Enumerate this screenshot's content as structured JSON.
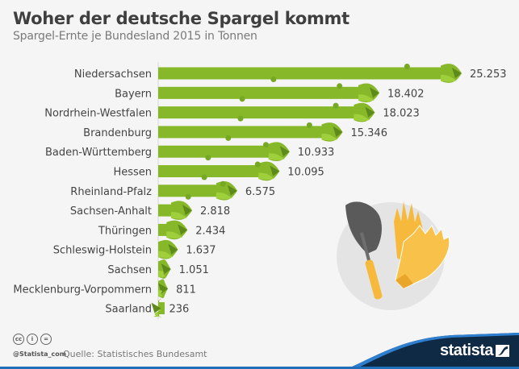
{
  "header": {
    "title": "Woher der deutsche Spargel kommt",
    "subtitle": "Spargel-Ernte je Bundesland 2015 in Tonnen"
  },
  "chart_data": {
    "type": "bar",
    "orientation": "horizontal",
    "title": "Woher der deutsche Spargel kommt",
    "subtitle": "Spargel-Ernte je Bundesland 2015 in Tonnen",
    "xlabel": "",
    "ylabel": "",
    "xlim": [
      0,
      25253
    ],
    "grid": false,
    "legend": "none",
    "unit": "Tonnen",
    "categories": [
      "Niedersachsen",
      "Bayern",
      "Nordrhein-Westfalen",
      "Brandenburg",
      "Baden-Württemberg",
      "Hessen",
      "Rheinland-Pfalz",
      "Sachsen-Anhalt",
      "Thüringen",
      "Schleswig-Holstein",
      "Sachsen",
      "Mecklenburg-Vorpommern",
      "Saarland"
    ],
    "values": [
      25253,
      18402,
      18023,
      15346,
      10933,
      10095,
      6575,
      2818,
      2434,
      1637,
      1051,
      811,
      236
    ],
    "value_labels": [
      "25.253",
      "18.402",
      "18.023",
      "15.346",
      "10.933",
      "10.095",
      "6.575",
      "2.818",
      "2.434",
      "1.637",
      "1.051",
      "811",
      "236"
    ]
  },
  "colors": {
    "bar": "#86b82a",
    "bar_dark": "#5e8a1c",
    "bar_light": "#9fcf3a",
    "illustration_circle": "#e4e4e4",
    "trowel": "#5a5a5a",
    "gloves": "#f6b93b",
    "brand_bg": "#0f2a44",
    "brand_line": "#1e6fb8"
  },
  "footer": {
    "cc_icons": [
      "cc",
      "i",
      "="
    ],
    "handle": "@Statista_com",
    "source": "Quelle: Statistisches Bundesamt",
    "brand": "statista"
  },
  "icons": {
    "illustration": "trowel-and-gloves-icon",
    "license": "creative-commons-icon",
    "brand_logo": "statista-logo-icon"
  }
}
